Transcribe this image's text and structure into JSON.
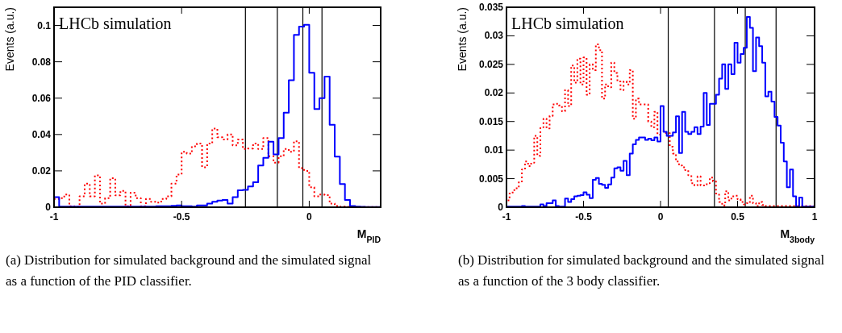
{
  "chart_data": [
    {
      "type": "histogram",
      "bins": [
        -1,
        -0.98,
        -0.96,
        -0.94,
        -0.92,
        -0.9,
        -0.88,
        -0.86,
        -0.84,
        -0.82,
        -0.8,
        -0.78,
        -0.76,
        -0.74,
        -0.72,
        -0.7,
        -0.68,
        -0.66,
        -0.64,
        -0.62,
        -0.6,
        -0.58,
        -0.56,
        -0.54,
        -0.52,
        -0.5,
        -0.48,
        -0.46,
        -0.44,
        -0.42,
        -0.4,
        -0.38,
        -0.36,
        -0.34,
        -0.32,
        -0.3,
        -0.28,
        -0.26,
        -0.24,
        -0.22,
        -0.2,
        -0.18,
        -0.16,
        -0.14,
        -0.12,
        -0.1,
        -0.08,
        -0.06,
        -0.04,
        -0.02,
        0,
        0.02,
        0.04,
        0.06,
        0.08,
        0.1,
        0.12,
        0.14,
        0.16,
        0.18,
        0.2,
        0.22,
        0.24,
        0.26,
        0.28
      ],
      "series": [
        {
          "color": "#ff0000",
          "line_style": "dotted",
          "values": [
            0.0045,
            0.005,
            0.007,
            0.0005,
            0.0002,
            0.006,
            0.013,
            0.006,
            0.0175,
            0.002,
            0.005,
            0.016,
            0.0065,
            0.009,
            0.0005,
            0.008,
            0.005,
            0.0005,
            0.0045,
            0.003,
            0.0025,
            0.0045,
            0.006,
            0.013,
            0.018,
            0.0305,
            0.0295,
            0.0335,
            0.035,
            0.022,
            0.035,
            0.0433,
            0.0385,
            0.0373,
            0.04,
            0.034,
            0.0373,
            0.032,
            0.0323,
            0.035,
            0.032,
            0.038,
            0.028,
            0.0245,
            0.028,
            0.032,
            0.0305,
            0.0363,
            0.0215,
            0.02,
            0.011,
            0.006,
            0.007,
            0.0067,
            0.002,
            0.0007,
            0.0003,
            0.0002,
            0.0002,
            0.0001,
            0.0001,
            0.0001,
            0.0001,
            0.0001
          ]
        },
        {
          "color": "#0000ff",
          "line_style": "solid",
          "values": [
            0.0055,
            0.0003,
            0.0003,
            0.0003,
            0.0003,
            0.0003,
            0.0003,
            0.0003,
            0.0003,
            0.0003,
            0.0003,
            0.0003,
            0.0003,
            0.0003,
            0.0003,
            0.0003,
            0.0003,
            0.0003,
            0.0003,
            0.0003,
            0.0005,
            0.0005,
            0.0005,
            0.0008,
            0.001,
            0.0005,
            0.0005,
            0.0003,
            0.001,
            0.001,
            0.002,
            0.003,
            0.0037,
            0.004,
            0.002,
            0.0055,
            0.0093,
            0.0095,
            0.0114,
            0.0138,
            0.023,
            0.0272,
            0.036,
            0.029,
            0.038,
            0.052,
            0.0699,
            0.0948,
            0.0993,
            0.1003,
            0.074,
            0.054,
            0.06,
            0.0718,
            0.0454,
            0.0278,
            0.0127,
            0.004,
            0.0007,
            0.0003,
            0.0002,
            0.0001,
            0.0001,
            0.0001
          ]
        }
      ],
      "xlim": [
        -1,
        0.28
      ],
      "ylim": [
        0,
        0.11
      ],
      "xticks": [
        -1,
        -0.5,
        0
      ],
      "yticks": [
        0,
        0.02,
        0.04,
        0.06,
        0.08,
        0.1
      ],
      "xlabel": "M$_{PID}$",
      "ylabel": "Events (a.u.)",
      "ref_lines": [
        {
          "axis": "x",
          "value": -0.25,
          "color": "#000000"
        },
        {
          "axis": "x",
          "value": -0.125,
          "color": "#000000"
        },
        {
          "axis": "x",
          "value": -0.025,
          "color": "#000000"
        },
        {
          "axis": "x",
          "value": 0.05,
          "color": "#000000"
        }
      ],
      "annotations": [
        "LHCb simulation",
        "(a) Distribution for simulated background and the simulated signal as a function of the PID classifier."
      ]
    },
    {
      "type": "histogram",
      "bins": [
        -1,
        -0.98,
        -0.96,
        -0.94,
        -0.92,
        -0.9,
        -0.88,
        -0.86,
        -0.84,
        -0.82,
        -0.8,
        -0.78,
        -0.76,
        -0.74,
        -0.72,
        -0.7,
        -0.68,
        -0.66,
        -0.64,
        -0.62,
        -0.6,
        -0.58,
        -0.56,
        -0.54,
        -0.52,
        -0.5,
        -0.48,
        -0.46,
        -0.44,
        -0.42,
        -0.4,
        -0.38,
        -0.36,
        -0.34,
        -0.32,
        -0.3,
        -0.28,
        -0.26,
        -0.24,
        -0.22,
        -0.2,
        -0.18,
        -0.16,
        -0.14,
        -0.12,
        -0.1,
        -0.08,
        -0.06,
        -0.04,
        -0.02,
        0,
        0.02,
        0.04,
        0.06,
        0.08,
        0.1,
        0.12,
        0.14,
        0.16,
        0.18,
        0.2,
        0.22,
        0.24,
        0.26,
        0.28,
        0.3,
        0.32,
        0.34,
        0.36,
        0.38,
        0.4,
        0.42,
        0.44,
        0.46,
        0.48,
        0.5,
        0.52,
        0.54,
        0.56,
        0.58,
        0.6,
        0.62,
        0.64,
        0.66,
        0.68,
        0.7,
        0.72,
        0.74,
        0.76,
        0.78,
        0.8,
        0.82,
        0.84,
        0.86,
        0.88,
        0.9,
        0.92,
        0.94,
        0.96,
        0.98,
        1
      ],
      "series": [
        {
          "color": "#ff0000",
          "line_style": "dotted",
          "values": [
            0.0012,
            0.0024,
            0.003,
            0.0033,
            0.0045,
            0.0066,
            0.008,
            0.0072,
            0.0078,
            0.0125,
            0.009,
            0.014,
            0.0155,
            0.0138,
            0.016,
            0.018,
            0.0181,
            0.0178,
            0.0168,
            0.0205,
            0.0177,
            0.0248,
            0.0218,
            0.026,
            0.0215,
            0.0262,
            0.0197,
            0.025,
            0.024,
            0.0285,
            0.0275,
            0.019,
            0.0215,
            0.021,
            0.0253,
            0.0235,
            0.022,
            0.0205,
            0.022,
            0.0215,
            0.024,
            0.0155,
            0.019,
            0.018,
            0.018,
            0.018,
            0.015,
            0.014,
            0.0167,
            0.0127,
            0.0134,
            0.013,
            0.013,
            0.0106,
            0.0094,
            0.008,
            0.0073,
            0.007,
            0.0065,
            0.0056,
            0.0042,
            0.0038,
            0.0054,
            0.0038,
            0.0038,
            0.0042,
            0.0052,
            0.0045,
            0.0024,
            0.0009,
            0.0003,
            0.0028,
            0.0012,
            0.0019,
            0.002,
            0.0014,
            0.0009,
            0.0005,
            0.0007,
            0.002,
            0.0007,
            0.0002,
            0.0009,
            0.0004,
            0.0002,
            0.0002,
            0.0002,
            0.0002,
            0.0002,
            0.0002,
            0.0002,
            0.0002,
            0.0002,
            0.0002,
            0.0002,
            0.0002,
            0.0002,
            0.0002,
            0.0002,
            0.0002
          ]
        },
        {
          "color": "#0000ff",
          "line_style": "solid",
          "values": [
            0.0001,
            0.0001,
            0.0001,
            0.0001,
            0.0001,
            0.0002,
            0.0001,
            0.0001,
            0.0001,
            0.0001,
            0.0001,
            0.0005,
            0.0002,
            0.0007,
            0.0007,
            0.0012,
            0.0002,
            0.0001,
            0.0001,
            0.0015,
            0.0009,
            0.0014,
            0.0019,
            0.002,
            0.0021,
            0.0026,
            0.0022,
            0.0016,
            0.0048,
            0.0051,
            0.0041,
            0.0039,
            0.0034,
            0.004,
            0.0052,
            0.0068,
            0.007,
            0.0064,
            0.0081,
            0.0056,
            0.0094,
            0.011,
            0.0118,
            0.0122,
            0.0122,
            0.0118,
            0.012,
            0.0117,
            0.0122,
            0.0115,
            0.0177,
            0.0132,
            0.0125,
            0.0125,
            0.0131,
            0.0159,
            0.0095,
            0.0167,
            0.0132,
            0.0128,
            0.0132,
            0.014,
            0.0128,
            0.0141,
            0.02,
            0.0144,
            0.0181,
            0.0181,
            0.0197,
            0.0225,
            0.025,
            0.0207,
            0.025,
            0.0233,
            0.0288,
            0.0253,
            0.0268,
            0.0279,
            0.0333,
            0.0314,
            0.0238,
            0.0297,
            0.0282,
            0.0253,
            0.0194,
            0.0202,
            0.0185,
            0.0158,
            0.0143,
            0.0113,
            0.008,
            0.0035,
            0.0066,
            0.0019,
            0.0001,
            0.0017,
            0.0001,
            0.0001,
            0.0001,
            0.0001
          ]
        }
      ],
      "xlim": [
        -1,
        1
      ],
      "ylim": [
        0,
        0.035
      ],
      "xticks": [
        -1,
        -0.5,
        0,
        0.5,
        1
      ],
      "yticks": [
        0,
        0.005,
        0.01,
        0.015,
        0.02,
        0.025,
        0.03,
        0.035
      ],
      "xlabel": "M$_{3body}$",
      "ylabel": "Events (a.u.)",
      "ref_lines": [
        {
          "axis": "x",
          "value": 0.05,
          "color": "#000000"
        },
        {
          "axis": "x",
          "value": 0.35,
          "color": "#000000"
        },
        {
          "axis": "x",
          "value": 0.55,
          "color": "#000000"
        },
        {
          "axis": "x",
          "value": 0.75,
          "color": "#000000"
        }
      ],
      "annotations": [
        "LHCb simulation",
        "(b) Distribution for simulated background and the simulated signal as a function of the 3 body classifier."
      ]
    }
  ]
}
